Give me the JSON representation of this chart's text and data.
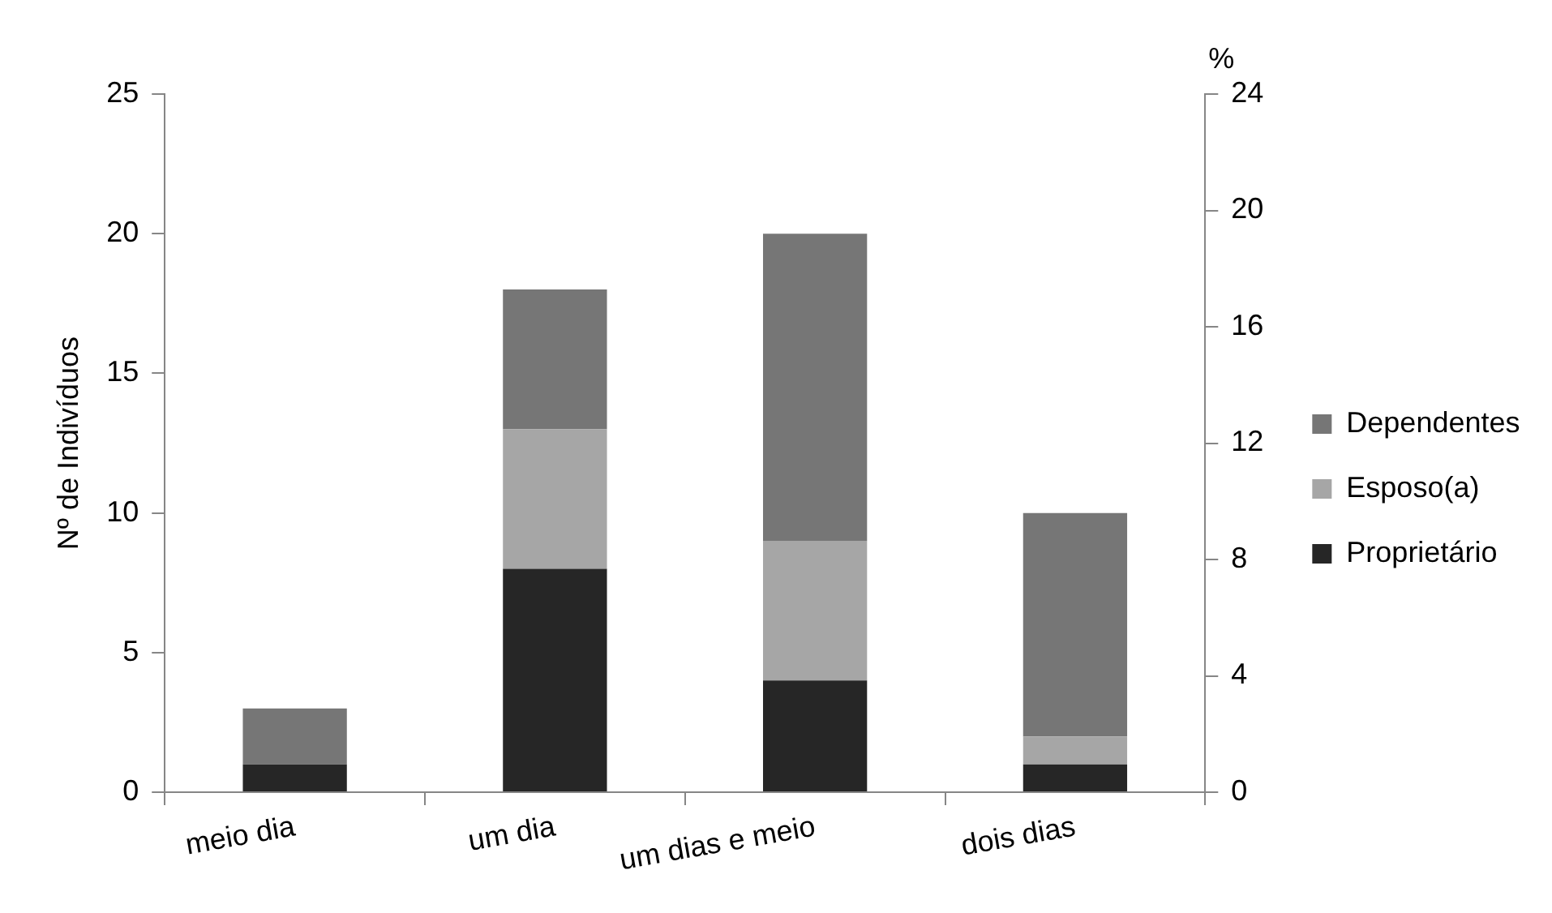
{
  "chart_data": {
    "type": "bar",
    "stacked": true,
    "ylabel": "Nº de Indivíduos",
    "y2label": "%",
    "categories": [
      "meio dia",
      "um dia",
      "um dias e meio",
      "dois dias"
    ],
    "series": [
      {
        "name": "Proprietário",
        "color": "#262626",
        "values": [
          1,
          8,
          4,
          1
        ]
      },
      {
        "name": "Esposo(a)",
        "color": "#a6a6a6",
        "values": [
          0,
          5,
          5,
          1
        ]
      },
      {
        "name": "Dependentes",
        "color": "#767676",
        "values": [
          2,
          5,
          11,
          8
        ]
      }
    ],
    "ylim": [
      0,
      25
    ],
    "yticks": [
      0,
      5,
      10,
      15,
      20,
      25
    ],
    "y2lim": [
      0,
      24
    ],
    "y2ticks": [
      0,
      4,
      8,
      12,
      16,
      20,
      24
    ],
    "legend": "right",
    "grid": false
  }
}
